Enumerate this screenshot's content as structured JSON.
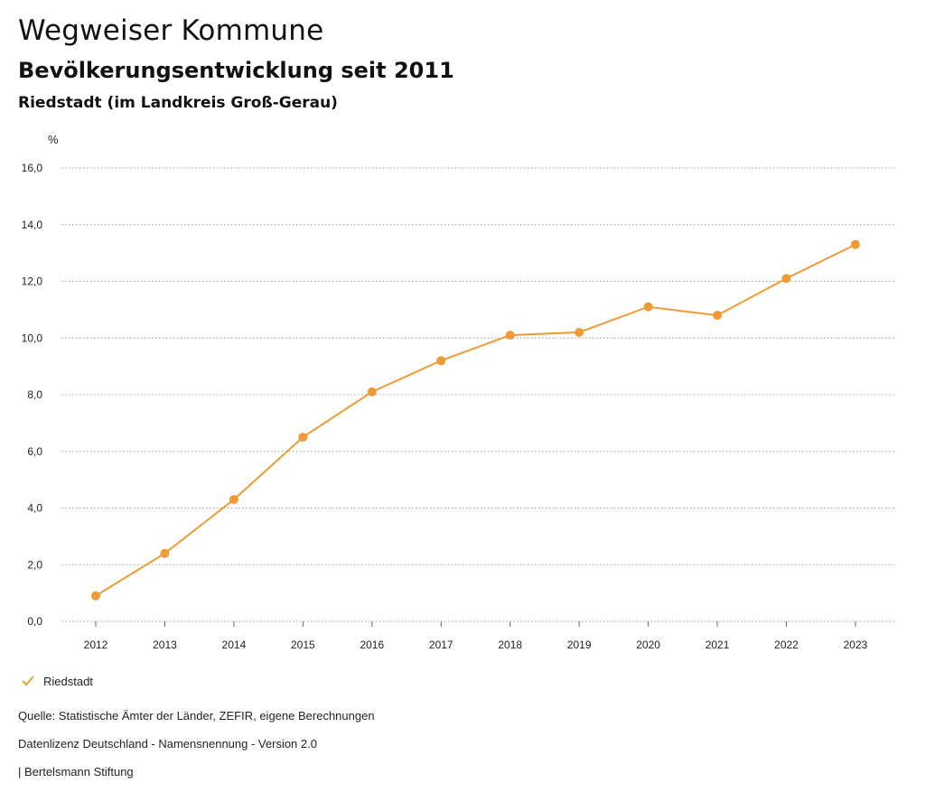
{
  "header": {
    "title": "Wegweiser Kommune",
    "subtitle": "Bevölkerungsentwicklung seit 2011",
    "region": "Riedstadt (im Landkreis Groß-Gerau)"
  },
  "chart_data": {
    "type": "line",
    "title": "Bevölkerungsentwicklung seit 2011",
    "ylabel": "%",
    "xlabel": "",
    "ylim": [
      0,
      16
    ],
    "yticks": [
      "0,0",
      "2,0",
      "4,0",
      "6,0",
      "8,0",
      "10,0",
      "12,0",
      "14,0",
      "16,0"
    ],
    "categories": [
      "2012",
      "2013",
      "2014",
      "2015",
      "2016",
      "2017",
      "2018",
      "2019",
      "2020",
      "2021",
      "2022",
      "2023"
    ],
    "series": [
      {
        "name": "Riedstadt",
        "color": "#ef9a34",
        "values": [
          0.9,
          2.4,
          4.3,
          6.5,
          8.1,
          9.2,
          10.1,
          10.2,
          11.1,
          10.8,
          12.1,
          13.3
        ]
      }
    ],
    "grid": true,
    "legend": "bottom-left"
  },
  "legend": {
    "label": "Riedstadt",
    "icon": "check-icon"
  },
  "footer": {
    "source": "Quelle: Statistische Ämter der Länder, ZEFIR, eigene Berechnungen",
    "license": "Datenlizenz Deutschland - Namensnennung - Version 2.0",
    "credit": "| Bertelsmann Stiftung"
  }
}
